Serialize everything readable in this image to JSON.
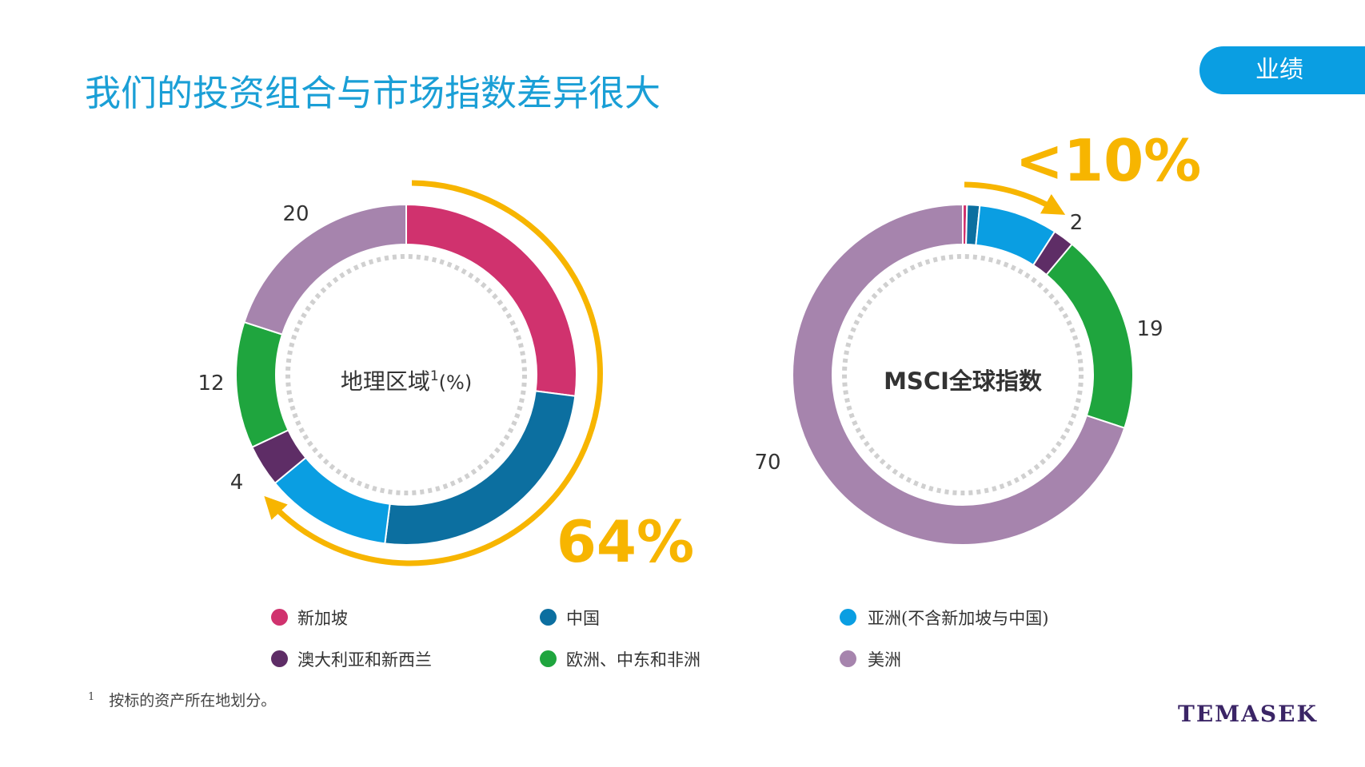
{
  "title": "我们的投资组合与市场指数差异很大",
  "tag": "业绩",
  "colors": {
    "singapore": "#d0326e",
    "china": "#0c6fa0",
    "asia_ex": "#0a9ee2",
    "anz": "#5e2d66",
    "emea": "#1fa53e",
    "americas": "#a684ad",
    "accent": "#f7b500"
  },
  "chart_data": [
    {
      "type": "pie",
      "center_label": "地理区域",
      "center_sup": "1",
      "center_unit": "(%)",
      "slices": [
        {
          "name": "新加坡",
          "value": 27,
          "color": "#d0326e",
          "label": ""
        },
        {
          "name": "中国",
          "value": 25,
          "color": "#0c6fa0",
          "label": ""
        },
        {
          "name": "亚洲(不含新加坡与中国)",
          "value": 12,
          "color": "#0a9ee2",
          "label": ""
        },
        {
          "name": "澳大利亚和新西兰",
          "value": 4,
          "color": "#5e2d66",
          "label": "4"
        },
        {
          "name": "欧洲、中东和非洲",
          "value": 12,
          "color": "#1fa53e",
          "label": "12"
        },
        {
          "name": "美洲",
          "value": 20,
          "color": "#a684ad",
          "label": "20"
        }
      ],
      "highlight": "64%"
    },
    {
      "type": "pie",
      "center_label": "MSCI全球指数",
      "slices": [
        {
          "name": "新加坡",
          "value": 0.4,
          "color": "#d0326e",
          "label": ""
        },
        {
          "name": "中国",
          "value": 1.2,
          "color": "#0c6fa0",
          "label": ""
        },
        {
          "name": "亚洲(不含新加坡与中国)",
          "value": 7.5,
          "color": "#0a9ee2",
          "label": ""
        },
        {
          "name": "澳大利亚和新西兰",
          "value": 2,
          "color": "#5e2d66",
          "label": "2"
        },
        {
          "name": "欧洲、中东和非洲",
          "value": 19,
          "color": "#1fa53e",
          "label": "19"
        },
        {
          "name": "美洲",
          "value": 70,
          "color": "#a684ad",
          "label": "70"
        }
      ],
      "highlight": "<10%"
    }
  ],
  "legend": [
    {
      "name": "新加坡",
      "color": "#d0326e"
    },
    {
      "name": "中国",
      "color": "#0c6fa0"
    },
    {
      "name": "亚洲(不含新加坡与中国)",
      "color": "#0a9ee2"
    },
    {
      "name": "澳大利亚和新西兰",
      "color": "#5e2d66"
    },
    {
      "name": "欧洲、中东和非洲",
      "color": "#1fa53e"
    },
    {
      "name": "美洲",
      "color": "#a684ad"
    }
  ],
  "footnote": {
    "mark": "1",
    "text": "按标的资产所在地划分。"
  },
  "logo": "TEMASEK"
}
